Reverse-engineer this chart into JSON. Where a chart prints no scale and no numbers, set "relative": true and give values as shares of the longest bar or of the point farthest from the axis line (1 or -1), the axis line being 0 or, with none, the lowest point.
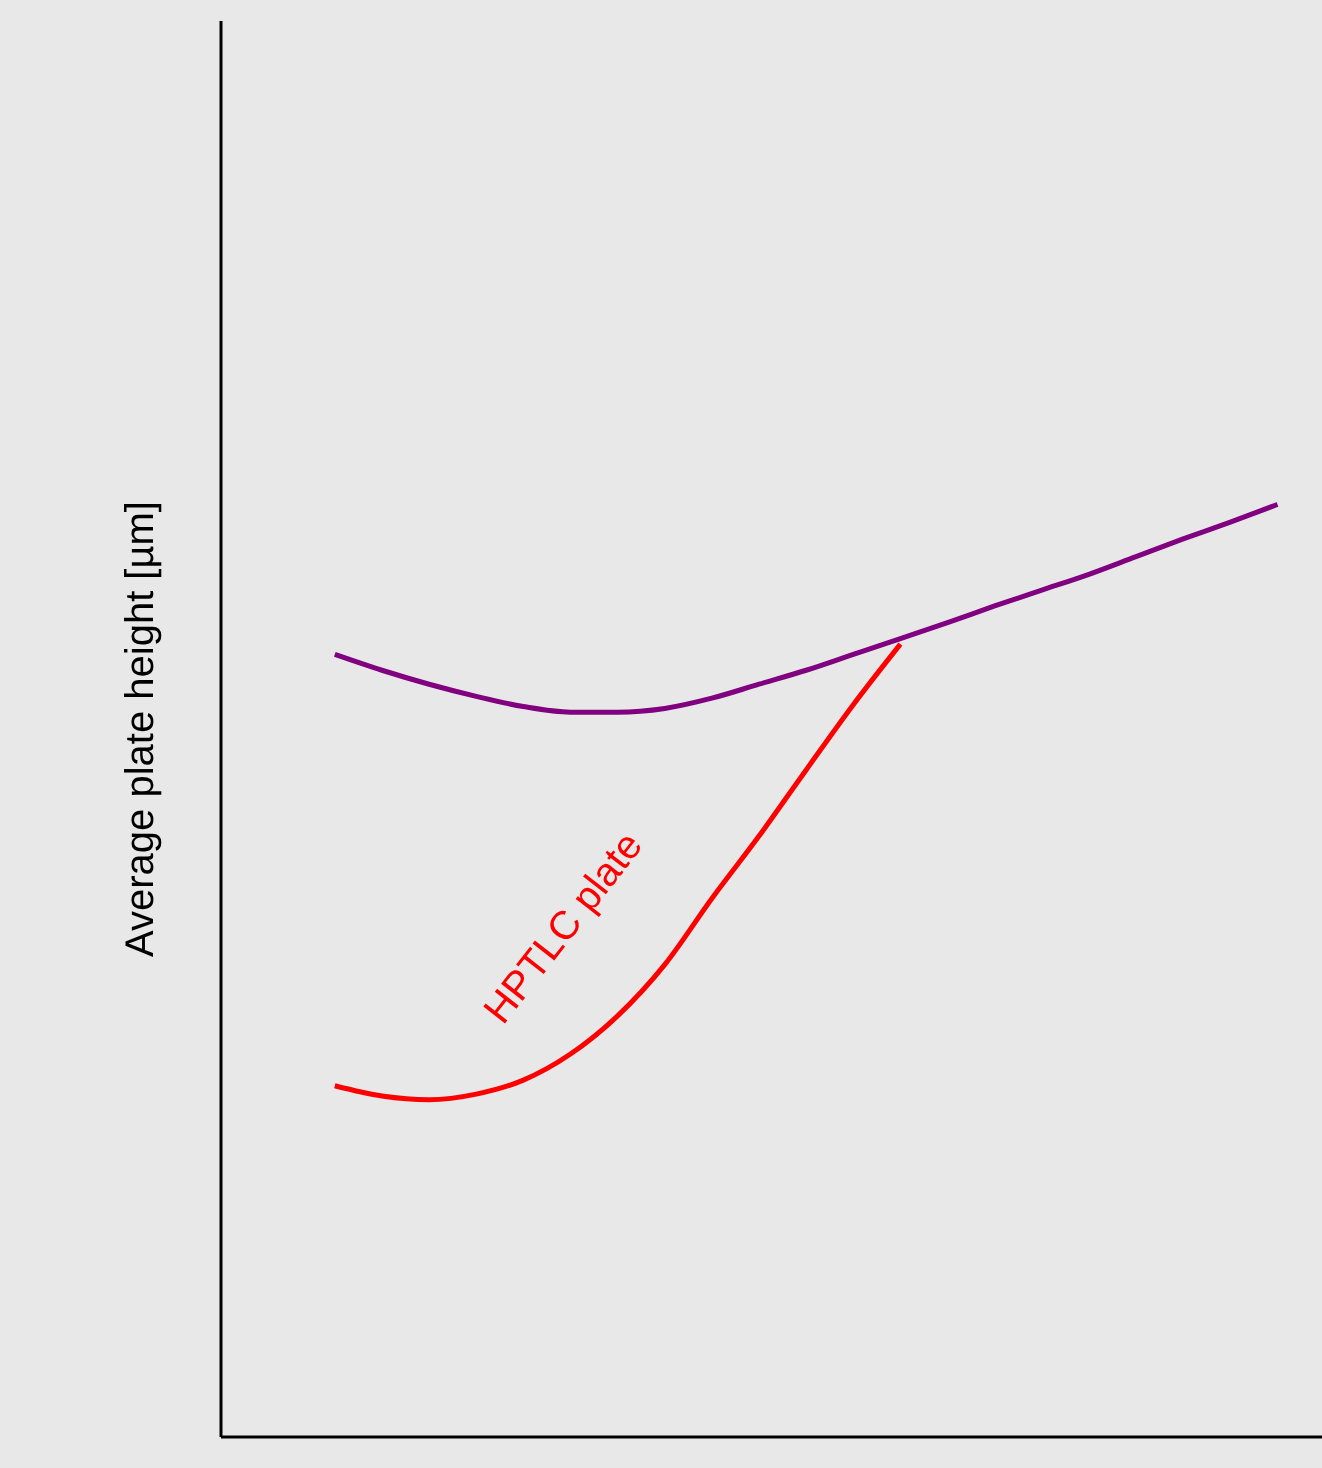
{
  "chart_data": {
    "type": "line",
    "relative": true,
    "ylabel": "Average plate height [µm]",
    "marker": "none",
    "line_style": "solid",
    "categories": [
      null,
      null,
      null,
      null,
      null,
      null,
      null,
      null,
      null,
      null,
      null,
      null,
      null,
      null,
      null,
      null,
      null,
      null,
      null,
      null,
      null
    ],
    "series": [
      {
        "color": "#800080",
        "values": [
          0.839,
          0.822,
          0.807,
          0.794,
          0.783,
          0.777,
          0.777,
          0.781,
          0.792,
          0.807,
          0.822,
          0.839,
          0.856,
          0.873,
          0.891,
          0.908,
          0.925,
          0.944,
          0.963,
          0.981,
          1
        ]
      },
      {
        "name": "HPTLC plate",
        "color": "#ff0000",
        "values": [
          0.376,
          0.365,
          0.361,
          0.367,
          0.382,
          0.41,
          0.451,
          0.506,
          0.577,
          0.644,
          0.715,
          0.785,
          0.85,
          null,
          null,
          null,
          null,
          null,
          null,
          null,
          null
        ]
      }
    ]
  }
}
